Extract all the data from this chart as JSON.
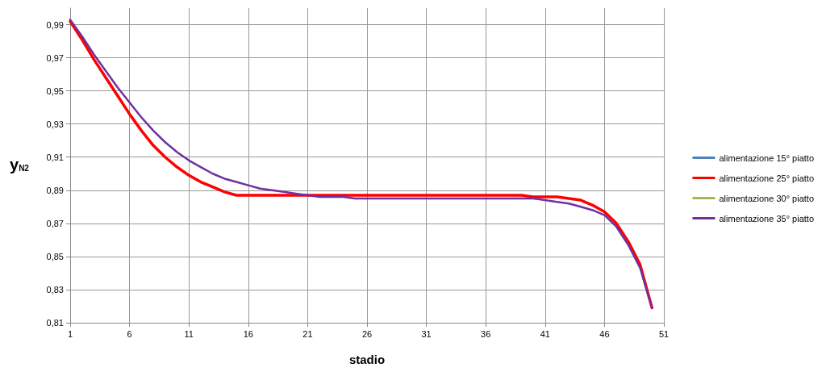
{
  "chart_data": {
    "type": "line",
    "xlabel": "stadio",
    "ylabel": "y$_{N2}$",
    "x": [
      1,
      2,
      3,
      4,
      5,
      6,
      7,
      8,
      9,
      10,
      11,
      12,
      13,
      14,
      15,
      16,
      17,
      18,
      19,
      20,
      21,
      22,
      23,
      24,
      25,
      26,
      27,
      28,
      29,
      30,
      31,
      32,
      33,
      34,
      35,
      36,
      37,
      38,
      39,
      40,
      41,
      42,
      43,
      44,
      45,
      46,
      47,
      48,
      49,
      50
    ],
    "series": [
      {
        "name": "alimentazione 15° piatto",
        "color": "#4f81bd",
        "values": [
          null,
          null,
          null,
          null,
          null,
          null,
          null,
          null,
          null,
          null,
          null,
          null,
          null,
          null,
          null,
          null,
          null,
          null,
          null,
          null,
          null,
          null,
          null,
          null,
          null,
          null,
          null,
          null,
          null,
          null,
          null,
          null,
          null,
          null,
          null,
          null,
          null,
          null,
          null,
          null,
          null,
          null,
          null,
          null,
          null,
          null,
          null,
          null,
          null,
          null
        ]
      },
      {
        "name": "alimentazione 25° piatto",
        "color": "#ff0000",
        "values": [
          0.992,
          0.981,
          0.969,
          0.958,
          0.947,
          0.936,
          0.926,
          0.917,
          0.91,
          0.904,
          0.899,
          0.895,
          0.892,
          0.889,
          0.887,
          0.887,
          0.887,
          0.887,
          0.887,
          0.887,
          0.887,
          0.887,
          0.887,
          0.887,
          0.887,
          0.887,
          0.887,
          0.887,
          0.887,
          0.887,
          0.887,
          0.887,
          0.887,
          0.887,
          0.887,
          0.887,
          0.887,
          0.887,
          0.887,
          0.886,
          0.886,
          0.886,
          0.885,
          0.884,
          0.881,
          0.877,
          0.87,
          0.859,
          0.845,
          0.819
        ]
      },
      {
        "name": "alimentazione 30° piatto",
        "color": "#9bbb59",
        "values": [
          null,
          null,
          null,
          null,
          null,
          null,
          null,
          null,
          null,
          null,
          null,
          null,
          null,
          null,
          null,
          null,
          null,
          null,
          null,
          null,
          null,
          null,
          null,
          null,
          null,
          null,
          null,
          null,
          null,
          null,
          null,
          null,
          null,
          null,
          null,
          null,
          null,
          null,
          null,
          null,
          null,
          null,
          null,
          null,
          null,
          null,
          null,
          null,
          null,
          null
        ]
      },
      {
        "name": "alimentazione 35° piatto",
        "color": "#7030a0",
        "values": [
          0.993,
          0.983,
          0.972,
          0.962,
          0.952,
          0.943,
          0.934,
          0.926,
          0.919,
          0.913,
          0.908,
          0.904,
          0.9,
          0.897,
          0.895,
          0.893,
          0.891,
          0.89,
          0.889,
          0.888,
          0.887,
          0.886,
          0.886,
          0.886,
          0.885,
          0.885,
          0.885,
          0.885,
          0.885,
          0.885,
          0.885,
          0.885,
          0.885,
          0.885,
          0.885,
          0.885,
          0.885,
          0.885,
          0.885,
          0.885,
          0.884,
          0.883,
          0.882,
          0.88,
          0.878,
          0.875,
          0.868,
          0.857,
          0.843,
          0.819
        ]
      }
    ],
    "xlim": [
      1,
      51
    ],
    "xticks": [
      1,
      6,
      11,
      16,
      21,
      26,
      31,
      36,
      41,
      46,
      51
    ],
    "ylim": [
      0.81,
      1.0
    ],
    "yticks": [
      {
        "value": 0.81,
        "label": "0,81"
      },
      {
        "value": 0.83,
        "label": "0,83"
      },
      {
        "value": 0.85,
        "label": "0,85"
      },
      {
        "value": 0.87,
        "label": "0,87"
      },
      {
        "value": 0.89,
        "label": "0,89"
      },
      {
        "value": 0.91,
        "label": "0,91"
      },
      {
        "value": 0.93,
        "label": "0,93"
      },
      {
        "value": 0.95,
        "label": "0,95"
      },
      {
        "value": 0.97,
        "label": "0,97"
      },
      {
        "value": 0.99,
        "label": "0,99"
      }
    ],
    "grid": true,
    "legend": "right",
    "marker": "none",
    "line_style": "solid"
  }
}
